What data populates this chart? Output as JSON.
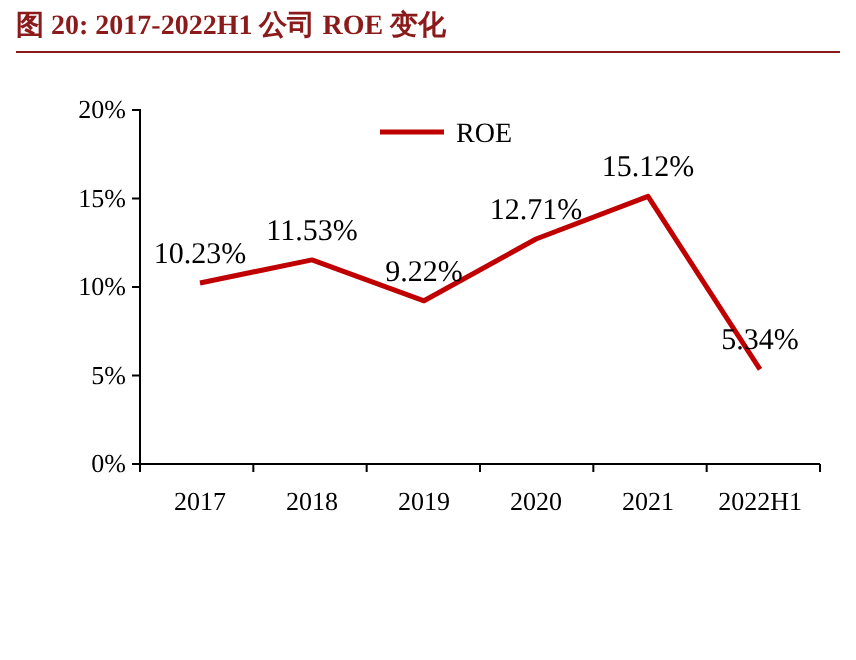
{
  "chart_data": {
    "type": "line",
    "title": "图 20:   2017-2022H1 公司 ROE 变化",
    "categories": [
      "2017",
      "2018",
      "2019",
      "2020",
      "2021",
      "2022H1"
    ],
    "series": [
      {
        "name": "ROE",
        "color": "#c00000",
        "values": [
          10.23,
          11.53,
          9.22,
          12.71,
          15.12,
          5.34
        ],
        "value_labels": [
          "10.23%",
          "11.53%",
          "9.22%",
          "12.71%",
          "15.12%",
          "5.34%"
        ]
      }
    ],
    "ylim": [
      0,
      20
    ],
    "yticks": [
      {
        "value": 0,
        "label": "0%"
      },
      {
        "value": 5,
        "label": "5%"
      },
      {
        "value": 10,
        "label": "10%"
      },
      {
        "value": 15,
        "label": "15%"
      },
      {
        "value": 20,
        "label": "20%"
      }
    ],
    "legend": "top",
    "marker": "none",
    "line_style": "solid"
  }
}
